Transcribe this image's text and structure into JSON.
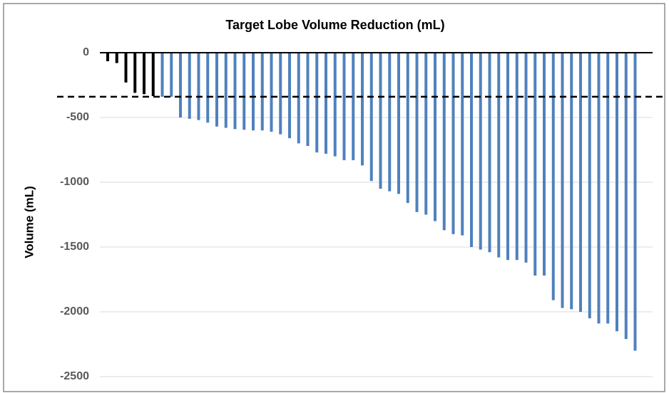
{
  "chart_data": {
    "type": "bar",
    "title": "Target Lobe Volume Reduction (mL)",
    "y_label": "Volume (mL)",
    "values": [
      -66,
      -80,
      -230,
      -310,
      -320,
      -335,
      -340,
      -340,
      -500,
      -510,
      -520,
      -540,
      -570,
      -580,
      -590,
      -595,
      -600,
      -600,
      -610,
      -630,
      -660,
      -700,
      -720,
      -770,
      -780,
      -800,
      -830,
      -830,
      -870,
      -990,
      -1050,
      -1070,
      -1090,
      -1160,
      -1230,
      -1250,
      -1300,
      -1370,
      -1400,
      -1410,
      -1500,
      -1520,
      -1540,
      -1580,
      -1600,
      -1600,
      -1620,
      -1720,
      -1720,
      -1910,
      -1970,
      -1980,
      -2000,
      -2050,
      -2090,
      -2090,
      -2150,
      -2210,
      -2300
    ],
    "colors": [
      "#000000",
      "#000000",
      "#000000",
      "#000000",
      "#000000",
      "#000000",
      "#4f81bd",
      "#4f81bd",
      "#4f81bd",
      "#4f81bd",
      "#4f81bd",
      "#4f81bd",
      "#4f81bd",
      "#4f81bd",
      "#4f81bd",
      "#4f81bd",
      "#4f81bd",
      "#4f81bd",
      "#4f81bd",
      "#4f81bd",
      "#4f81bd",
      "#4f81bd",
      "#4f81bd",
      "#4f81bd",
      "#4f81bd",
      "#4f81bd",
      "#4f81bd",
      "#4f81bd",
      "#4f81bd",
      "#4f81bd",
      "#4f81bd",
      "#4f81bd",
      "#4f81bd",
      "#4f81bd",
      "#4f81bd",
      "#4f81bd",
      "#4f81bd",
      "#4f81bd",
      "#4f81bd",
      "#4f81bd",
      "#4f81bd",
      "#4f81bd",
      "#4f81bd",
      "#4f81bd",
      "#4f81bd",
      "#4f81bd",
      "#4f81bd",
      "#4f81bd",
      "#4f81bd",
      "#4f81bd",
      "#4f81bd",
      "#4f81bd",
      "#4f81bd",
      "#4f81bd",
      "#4f81bd",
      "#4f81bd",
      "#4f81bd",
      "#4f81bd",
      "#4f81bd"
    ],
    "reference_line": {
      "value": -340,
      "style": "dashed",
      "color": "#000000"
    },
    "ylim": [
      -2500,
      0
    ],
    "yticks": [
      0,
      -500,
      -1000,
      -1500,
      -2000,
      -2500
    ],
    "grid": true
  }
}
